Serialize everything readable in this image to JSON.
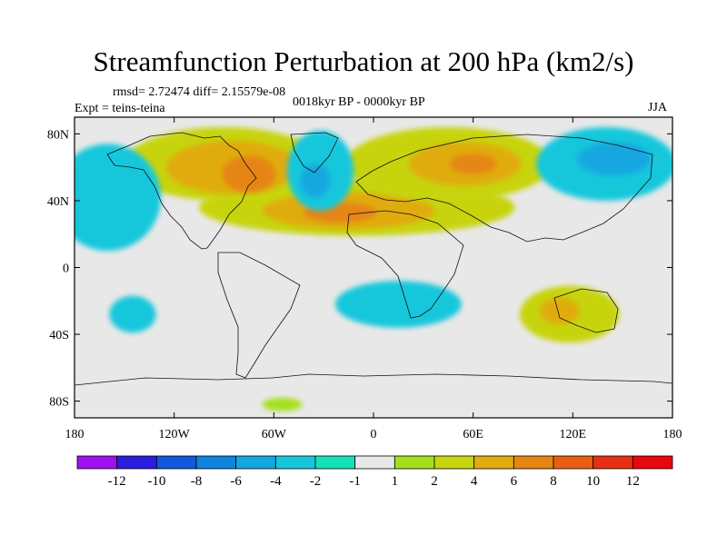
{
  "chart_data": {
    "type": "heatmap",
    "title": "Streamfunction Perturbation at 200 hPa (km2/s)",
    "stats": "rmsd= 2.72474 diff= 2.15579e-08",
    "left_subtitle": "Expt = teins-teina",
    "center_subtitle": "0018kyr BP - 0000kyr BP",
    "right_subtitle": "JJA",
    "x_range": [
      -180,
      180
    ],
    "y_range": [
      -90,
      90
    ],
    "x_ticks": [
      {
        "value": -180,
        "label": "180"
      },
      {
        "value": -120,
        "label": "120W"
      },
      {
        "value": -60,
        "label": "60W"
      },
      {
        "value": 0,
        "label": "0"
      },
      {
        "value": 60,
        "label": "60E"
      },
      {
        "value": 120,
        "label": "120E"
      },
      {
        "value": 180,
        "label": "180"
      }
    ],
    "y_ticks": [
      {
        "value": 80,
        "label": "80N"
      },
      {
        "value": 40,
        "label": "40N"
      },
      {
        "value": 0,
        "label": "0"
      },
      {
        "value": -40,
        "label": "40S"
      },
      {
        "value": -80,
        "label": "80S"
      }
    ],
    "colorbar": {
      "labels": [
        "-12",
        "-10",
        "-8",
        "-6",
        "-4",
        "-2",
        "-1",
        "1",
        "2",
        "4",
        "6",
        "8",
        "10",
        "12"
      ],
      "colors": [
        "#9f10ef",
        "#2c1ede",
        "#1158dc",
        "#1183dd",
        "#13a7e0",
        "#16c7dc",
        "#15e1b9",
        "#e8e8e8",
        "#a5e01d",
        "#c7d410",
        "#e0ac10",
        "#e58512",
        "#e85e13",
        "#e73013",
        "#e8080d"
      ]
    },
    "features": [
      {
        "name": "westerly-pos",
        "lon": -10,
        "lat": 36,
        "level": 2,
        "rlon": 95,
        "rlat": 17
      },
      {
        "name": "westerly-core",
        "lon": -15,
        "lat": 34,
        "level": 3,
        "rlon": 52,
        "rlat": 11
      },
      {
        "name": "westerly-max",
        "lon": -20,
        "lat": 33,
        "level": 4,
        "rlon": 22,
        "rlat": 6
      },
      {
        "name": "north-america-pos",
        "lon": -90,
        "lat": 62,
        "level": 2,
        "rlon": 60,
        "rlat": 22
      },
      {
        "name": "north-america-core",
        "lon": -85,
        "lat": 60,
        "level": 3,
        "rlon": 40,
        "rlat": 16
      },
      {
        "name": "north-america-max",
        "lon": -75,
        "lat": 56,
        "level": 4,
        "rlon": 16,
        "rlat": 11
      },
      {
        "name": "eurasia-pos",
        "lon": 45,
        "lat": 62,
        "level": 2,
        "rlon": 62,
        "rlat": 22
      },
      {
        "name": "eurasia-core",
        "lon": 55,
        "lat": 62,
        "level": 3,
        "rlon": 34,
        "rlat": 13
      },
      {
        "name": "eurasia-max",
        "lon": 60,
        "lat": 62,
        "level": 4,
        "rlon": 14,
        "rlat": 6
      },
      {
        "name": "atlantic-neg",
        "lon": -32,
        "lat": 58,
        "level": -2,
        "rlon": 20,
        "rlat": 24
      },
      {
        "name": "atlantic-neg-core",
        "lon": -35,
        "lat": 52,
        "level": -3,
        "rlon": 9,
        "rlat": 10
      },
      {
        "name": "pacific-neg",
        "lon": -160,
        "lat": 42,
        "level": -2,
        "rlon": 32,
        "rlat": 32
      },
      {
        "name": "east-asia-neg",
        "lon": 140,
        "lat": 62,
        "level": -2,
        "rlon": 42,
        "rlat": 22
      },
      {
        "name": "east-asia-core",
        "lon": 145,
        "lat": 65,
        "level": -3,
        "rlon": 22,
        "rlat": 10
      },
      {
        "name": "south-atlantic-neg",
        "lon": 15,
        "lat": -22,
        "level": -2,
        "rlon": 38,
        "rlat": 14
      },
      {
        "name": "south-pacific-neg",
        "lon": -145,
        "lat": -28,
        "level": -2,
        "rlon": 14,
        "rlat": 11
      },
      {
        "name": "australia-pos",
        "lon": 118,
        "lat": -28,
        "level": 2,
        "rlon": 30,
        "rlat": 17
      },
      {
        "name": "australia-core",
        "lon": 112,
        "lat": -26,
        "level": 3,
        "rlon": 12,
        "rlat": 8
      },
      {
        "name": "antarctic-pos",
        "lon": -55,
        "lat": -82,
        "level": 1,
        "rlon": 12,
        "rlat": 4
      }
    ]
  }
}
